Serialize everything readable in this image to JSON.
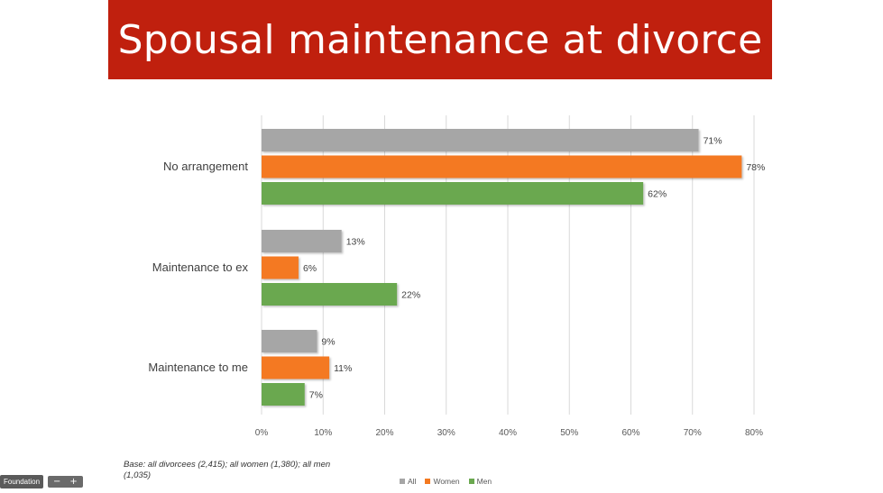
{
  "title": "Spousal maintenance at divorce",
  "colors": {
    "banner": "#c0200e"
  },
  "chart_data": {
    "type": "bar",
    "orientation": "horizontal",
    "categories": [
      "No arrangement",
      "Maintenance to ex",
      "Maintenance to me"
    ],
    "series": [
      {
        "name": "All",
        "color": "#a6a6a6",
        "values": [
          71,
          13,
          9
        ],
        "labels": [
          "71%",
          "13%",
          "9%"
        ]
      },
      {
        "name": "Women",
        "color": "#f47920",
        "values": [
          78,
          6,
          11
        ],
        "labels": [
          "78%",
          "6%",
          "11%"
        ]
      },
      {
        "name": "Men",
        "color": "#6aa84f",
        "values": [
          62,
          22,
          7
        ],
        "labels": [
          "62%",
          "22%",
          "7%"
        ]
      }
    ],
    "xlim": [
      0,
      80
    ],
    "xticks": [
      "0%",
      "10%",
      "20%",
      "30%",
      "40%",
      "50%",
      "60%",
      "70%",
      "80%"
    ],
    "grid": true,
    "legend_position": "bottom"
  },
  "base_note": "Base: all divorcees (2,415); all women (1,380); all men (1,035)",
  "foundation": {
    "label": "Foundation",
    "zoom_out": "−",
    "zoom_in": "+"
  }
}
